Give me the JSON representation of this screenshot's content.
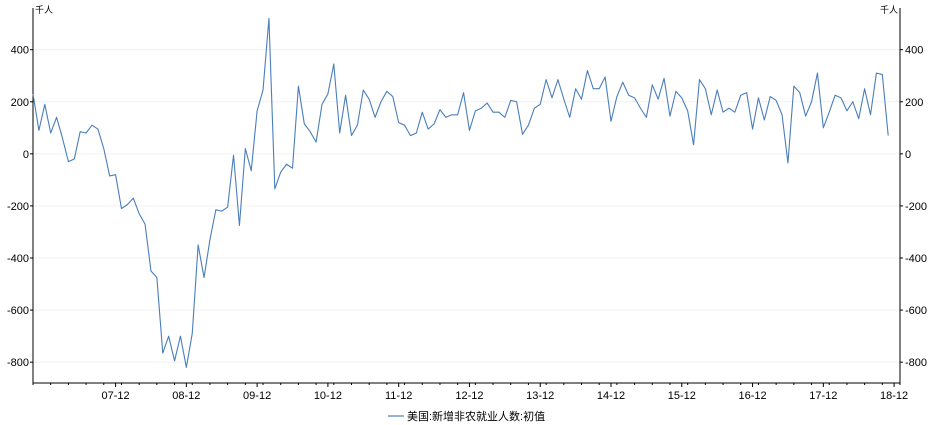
{
  "chart_data": {
    "type": "line",
    "title": "",
    "unit_label": "千人",
    "xlabel": "",
    "ylabel": "",
    "ylim": [
      -880,
      560
    ],
    "yticks": [
      400,
      200,
      0,
      -200,
      -400,
      -600,
      -800
    ],
    "grid": true,
    "legend_position": "bottom",
    "x_range": [
      "2006-10",
      "2019-01"
    ],
    "x_tick_labels": [
      "07-12",
      "08-12",
      "09-12",
      "10-12",
      "11-12",
      "12-12",
      "13-12",
      "14-12",
      "15-12",
      "16-12",
      "17-12",
      "18-12"
    ],
    "series": [
      {
        "name": "美国:新增非农就业人数:初值",
        "color": "#4a7ebb",
        "points": [
          [
            "2006-10",
            230
          ],
          [
            "2006-11",
            90
          ],
          [
            "2006-12",
            190
          ],
          [
            "2007-01",
            80
          ],
          [
            "2007-02",
            140
          ],
          [
            "2007-03",
            60
          ],
          [
            "2007-04",
            -30
          ],
          [
            "2007-05",
            -20
          ],
          [
            "2007-06",
            85
          ],
          [
            "2007-07",
            80
          ],
          [
            "2007-08",
            110
          ],
          [
            "2007-09",
            95
          ],
          [
            "2007-10",
            20
          ],
          [
            "2007-11",
            -85
          ],
          [
            "2007-12",
            -80
          ],
          [
            "2008-01",
            -210
          ],
          [
            "2008-02",
            -195
          ],
          [
            "2008-03",
            -170
          ],
          [
            "2008-04",
            -230
          ],
          [
            "2008-05",
            -270
          ],
          [
            "2008-06",
            -450
          ],
          [
            "2008-07",
            -475
          ],
          [
            "2008-08",
            -765
          ],
          [
            "2008-09",
            -700
          ],
          [
            "2008-10",
            -795
          ],
          [
            "2008-11",
            -700
          ],
          [
            "2008-12",
            -820
          ],
          [
            "2009-01",
            -690
          ],
          [
            "2009-02",
            -350
          ],
          [
            "2009-03",
            -475
          ],
          [
            "2009-04",
            -330
          ],
          [
            "2009-05",
            -215
          ],
          [
            "2009-06",
            -220
          ],
          [
            "2009-07",
            -205
          ],
          [
            "2009-08",
            -5
          ],
          [
            "2009-09",
            -275
          ],
          [
            "2009-10",
            20
          ],
          [
            "2009-11",
            -65
          ],
          [
            "2009-12",
            165
          ],
          [
            "2010-01",
            245
          ],
          [
            "2010-02",
            520
          ],
          [
            "2010-03",
            -135
          ],
          [
            "2010-04",
            -70
          ],
          [
            "2010-05",
            -40
          ],
          [
            "2010-06",
            -55
          ],
          [
            "2010-07",
            260
          ],
          [
            "2010-08",
            115
          ],
          [
            "2010-09",
            85
          ],
          [
            "2010-10",
            45
          ],
          [
            "2010-11",
            190
          ],
          [
            "2010-12",
            230
          ],
          [
            "2011-01",
            345
          ],
          [
            "2011-02",
            80
          ],
          [
            "2011-03",
            225
          ],
          [
            "2011-04",
            70
          ],
          [
            "2011-05",
            110
          ],
          [
            "2011-06",
            245
          ],
          [
            "2011-07",
            210
          ],
          [
            "2011-08",
            140
          ],
          [
            "2011-09",
            200
          ],
          [
            "2011-10",
            240
          ],
          [
            "2011-11",
            220
          ],
          [
            "2011-12",
            120
          ],
          [
            "2012-01",
            110
          ],
          [
            "2012-02",
            70
          ],
          [
            "2012-03",
            80
          ],
          [
            "2012-04",
            160
          ],
          [
            "2012-05",
            95
          ],
          [
            "2012-06",
            115
          ],
          [
            "2012-07",
            170
          ],
          [
            "2012-08",
            140
          ],
          [
            "2012-09",
            150
          ],
          [
            "2012-10",
            150
          ],
          [
            "2012-11",
            235
          ],
          [
            "2012-12",
            90
          ],
          [
            "2013-01",
            165
          ],
          [
            "2013-02",
            175
          ],
          [
            "2013-03",
            195
          ],
          [
            "2013-04",
            160
          ],
          [
            "2013-05",
            160
          ],
          [
            "2013-06",
            140
          ],
          [
            "2013-07",
            205
          ],
          [
            "2013-08",
            200
          ],
          [
            "2013-09",
            75
          ],
          [
            "2013-10",
            110
          ],
          [
            "2013-11",
            175
          ],
          [
            "2013-12",
            190
          ],
          [
            "2014-01",
            285
          ],
          [
            "2014-02",
            215
          ],
          [
            "2014-03",
            285
          ],
          [
            "2014-04",
            210
          ],
          [
            "2014-05",
            140
          ],
          [
            "2014-06",
            250
          ],
          [
            "2014-07",
            210
          ],
          [
            "2014-08",
            320
          ],
          [
            "2014-09",
            250
          ],
          [
            "2014-10",
            250
          ],
          [
            "2014-11",
            295
          ],
          [
            "2014-12",
            125
          ],
          [
            "2015-01",
            220
          ],
          [
            "2015-02",
            275
          ],
          [
            "2015-03",
            225
          ],
          [
            "2015-04",
            215
          ],
          [
            "2015-05",
            175
          ],
          [
            "2015-06",
            140
          ],
          [
            "2015-07",
            265
          ],
          [
            "2015-08",
            210
          ],
          [
            "2015-09",
            290
          ],
          [
            "2015-10",
            145
          ],
          [
            "2015-11",
            240
          ],
          [
            "2015-12",
            215
          ],
          [
            "2016-01",
            165
          ],
          [
            "2016-02",
            35
          ],
          [
            "2016-03",
            285
          ],
          [
            "2016-04",
            250
          ],
          [
            "2016-05",
            150
          ],
          [
            "2016-06",
            245
          ],
          [
            "2016-07",
            160
          ],
          [
            "2016-08",
            175
          ],
          [
            "2016-09",
            160
          ],
          [
            "2016-10",
            225
          ],
          [
            "2016-11",
            235
          ],
          [
            "2016-12",
            95
          ],
          [
            "2017-01",
            215
          ],
          [
            "2017-02",
            130
          ],
          [
            "2017-03",
            220
          ],
          [
            "2017-04",
            205
          ],
          [
            "2017-05",
            150
          ],
          [
            "2017-06",
            -35
          ],
          [
            "2017-07",
            260
          ],
          [
            "2017-08",
            235
          ],
          [
            "2017-09",
            145
          ],
          [
            "2017-10",
            200
          ],
          [
            "2017-11",
            310
          ],
          [
            "2017-12",
            100
          ],
          [
            "2018-01",
            160
          ],
          [
            "2018-02",
            225
          ],
          [
            "2018-03",
            215
          ],
          [
            "2018-04",
            165
          ],
          [
            "2018-05",
            200
          ],
          [
            "2018-06",
            135
          ],
          [
            "2018-07",
            250
          ],
          [
            "2018-08",
            150
          ],
          [
            "2018-09",
            310
          ],
          [
            "2018-10",
            305
          ],
          [
            "2018-11",
            70
          ]
        ]
      }
    ]
  }
}
